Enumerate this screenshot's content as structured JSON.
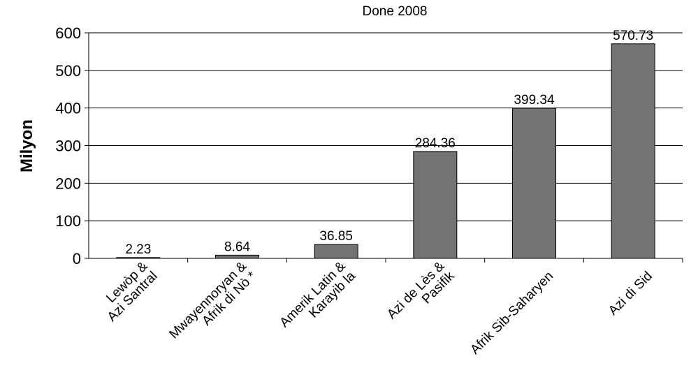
{
  "chart_data": {
    "type": "bar",
    "title": "",
    "subtitle": "Done 2008",
    "xlabel": "",
    "ylabel": "Milyon",
    "ylim": [
      0,
      600
    ],
    "yticks": [
      0,
      100,
      200,
      300,
      400,
      500,
      600
    ],
    "grid": true,
    "categories": [
      [
        "Lewòp &",
        "Azi Santral"
      ],
      [
        "Mwayennoryan &",
        "Afrik di Nò *"
      ],
      [
        "Amerik Latin &",
        "Karayib la"
      ],
      [
        "Azi de Lès &",
        "Pasifik"
      ],
      [
        "Afrik Sib-Saharyen"
      ],
      [
        "Azi di Sid"
      ]
    ],
    "values": [
      2.23,
      8.64,
      36.85,
      284.36,
      399.34,
      570.73
    ],
    "value_labels": [
      "2.23",
      "8.64",
      "36.85",
      "284.36",
      "399.34",
      "570.73"
    ],
    "bar_color": "#737373"
  }
}
